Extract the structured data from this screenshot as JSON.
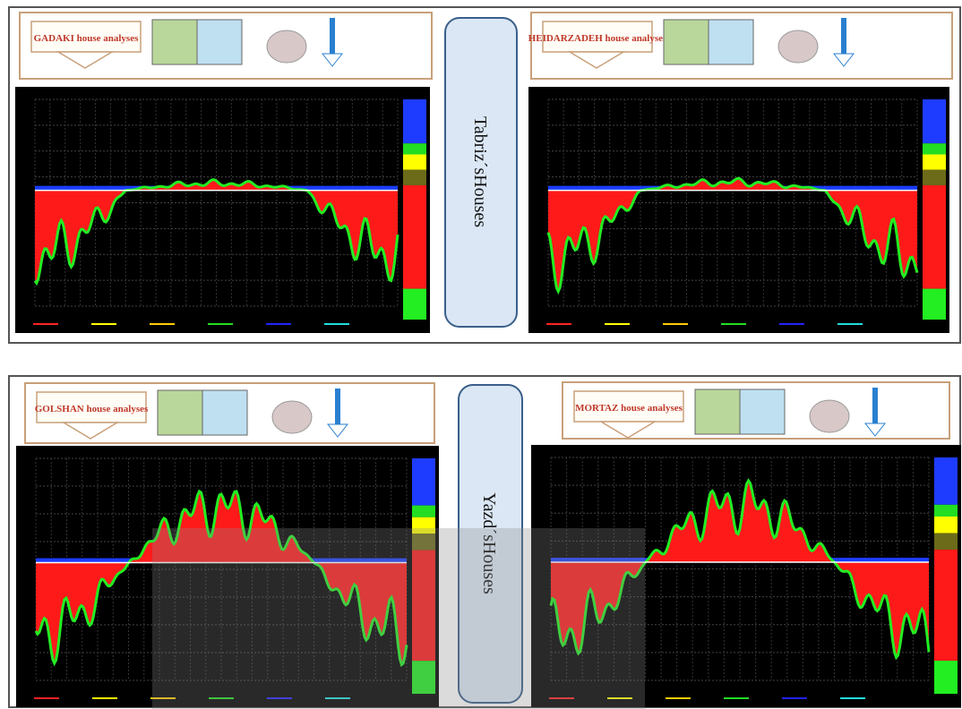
{
  "panels": [
    {
      "label": "Tabriz´sHouses",
      "houses": [
        {
          "label": "GADAKI house analyses"
        },
        {
          "label": "HEIDARZADEH house analyses"
        }
      ]
    },
    {
      "label": "Yazd´sHouses",
      "houses": [
        {
          "label": "GOLSHAN house analyses"
        },
        {
          "label": "MORTAZ house analyses"
        }
      ]
    }
  ]
}
